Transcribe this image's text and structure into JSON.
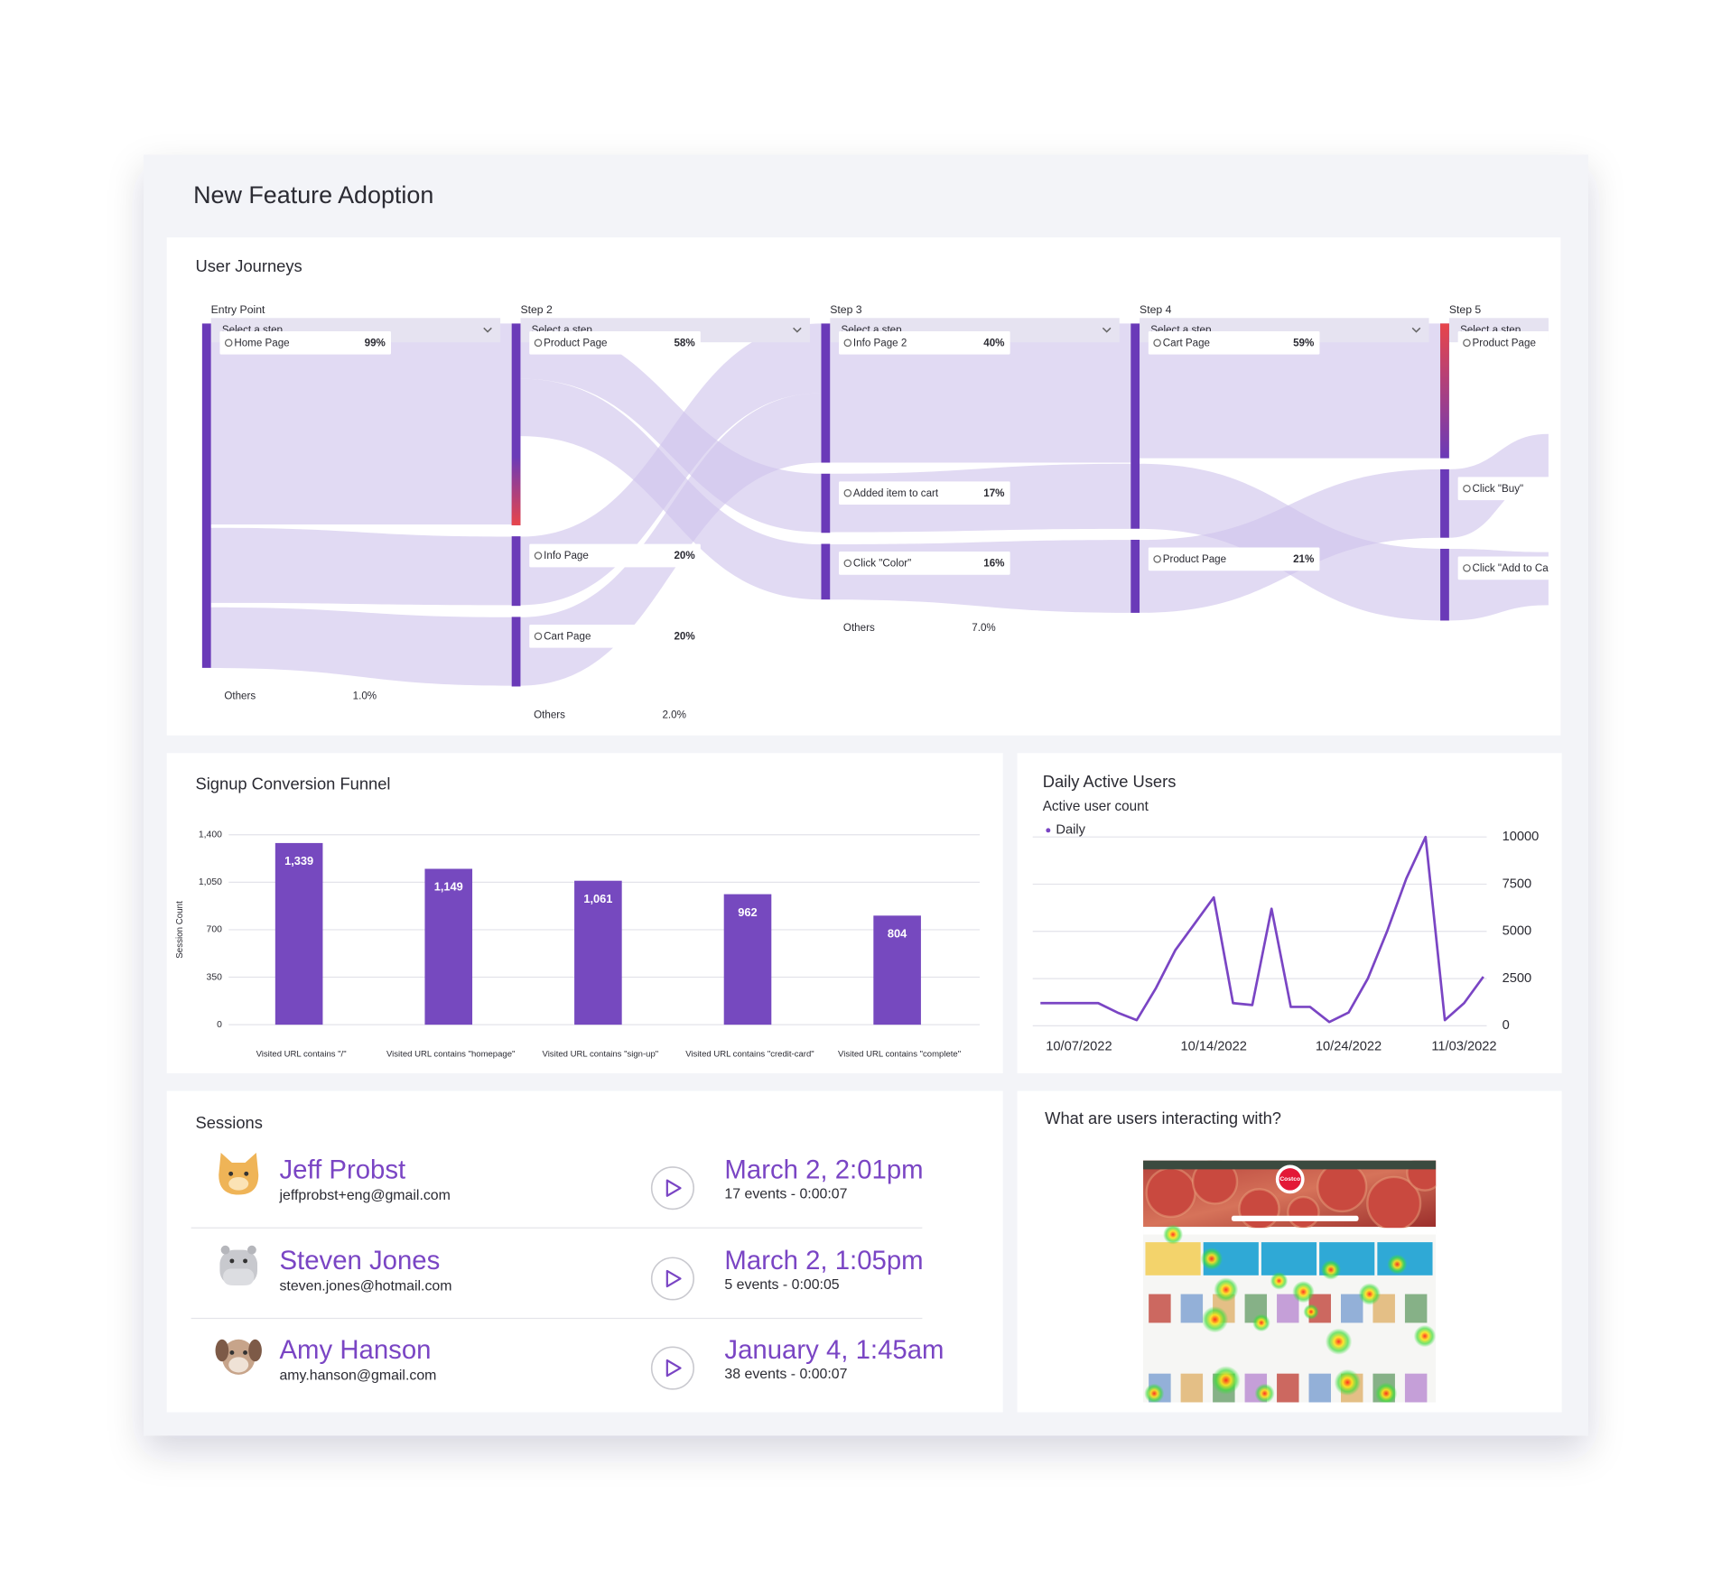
{
  "title": "New Feature Adoption",
  "journeys": {
    "title": "User Journeys",
    "placeholder": "Select a step",
    "columns": [
      {
        "label": "Entry Point",
        "nodes": [
          {
            "label": "Home Page",
            "value": 99,
            "value_label": "99%"
          }
        ],
        "others": {
          "label": "Others",
          "value": 1.0,
          "value_label": "1.0%"
        }
      },
      {
        "label": "Step 2",
        "nodes": [
          {
            "label": "Product Page",
            "value": 58,
            "value_label": "58%"
          },
          {
            "label": "Info Page",
            "value": 20,
            "value_label": "20%"
          },
          {
            "label": "Cart Page",
            "value": 20,
            "value_label": "20%"
          }
        ],
        "others": {
          "label": "Others",
          "value": 2.0,
          "value_label": "2.0%"
        }
      },
      {
        "label": "Step 3",
        "nodes": [
          {
            "label": "Info Page 2",
            "value": 40,
            "value_label": "40%"
          },
          {
            "label": "Added item to cart",
            "value": 17,
            "value_label": "17%"
          },
          {
            "label": "Click \"Color\"",
            "value": 16,
            "value_label": "16%"
          }
        ],
        "others": {
          "label": "Others",
          "value": 7.0,
          "value_label": "7.0%"
        }
      },
      {
        "label": "Step 4",
        "nodes": [
          {
            "label": "Cart Page",
            "value": 59,
            "value_label": "59%"
          },
          {
            "label": "Product Page",
            "value": 21,
            "value_label": "21%"
          }
        ]
      },
      {
        "label": "Step 5",
        "nodes": [
          {
            "label": "Product Page"
          },
          {
            "label": "Click \"Buy\""
          },
          {
            "label": "Click \"Add to Ca"
          }
        ]
      }
    ]
  },
  "chart_data": [
    {
      "type": "bar",
      "title": "Signup Conversion Funnel",
      "ylabel": "Session Count",
      "categories": [
        "Visited URL contains \"/\"",
        "Visited URL contains \"homepage\"",
        "Visited URL contains \"sign-up\"",
        "Visited URL contains \"credit-card\"",
        "Visited URL contains \"complete\""
      ],
      "values": [
        1339,
        1149,
        1061,
        962,
        804
      ],
      "value_labels": [
        "1,339",
        "1,149",
        "1,061",
        "962",
        "804"
      ],
      "color": "#7649bf",
      "ylim": [
        0,
        1400
      ],
      "yticks": [
        0,
        350,
        700,
        {
          "value": 1050,
          "label": "1,050"
        },
        {
          "value": 1400,
          "label": "1,400"
        }
      ],
      "grid": true
    },
    {
      "type": "line",
      "title": "Daily Active Users",
      "subtitle": "Active user count",
      "categories": [
        null,
        null,
        "10/07/2022",
        null,
        null,
        null,
        null,
        null,
        null,
        "10/14/2022",
        null,
        null,
        null,
        null,
        null,
        null,
        "10/24/2022",
        null,
        null,
        null,
        null,
        null,
        "11/03/2022",
        null
      ],
      "series": [
        {
          "name": "Daily",
          "color": "#7a45c4",
          "values": [
            1200,
            1200,
            1200,
            1200,
            700,
            300,
            2000,
            4000,
            5400,
            6800,
            1200,
            1100,
            6200,
            1000,
            1000,
            200,
            700,
            2500,
            5000,
            7800,
            10000,
            300,
            1200,
            2600
          ]
        }
      ],
      "ylim": [
        0,
        10000
      ],
      "yticks": [
        0,
        2500,
        5000,
        7500,
        10000
      ],
      "grid": true,
      "legend": "top-left"
    }
  ],
  "sessions": {
    "title": "Sessions",
    "items": [
      {
        "name": "Jeff Probst",
        "email": "jeffprobst+eng@gmail.com",
        "time": "March 2, 2:01pm",
        "details": "17 events - 0:00:07"
      },
      {
        "name": "Steven Jones",
        "email": "steven.jones@hotmail.com",
        "time": "March 2, 1:05pm",
        "details": "5 events - 0:00:05"
      },
      {
        "name": "Amy Hanson",
        "email": "amy.hanson@gmail.com",
        "time": "January 4, 1:45am",
        "details": "38 events - 0:00:07"
      }
    ]
  },
  "heatmap": {
    "title": "What are users interacting with?",
    "brand": "Costco"
  }
}
